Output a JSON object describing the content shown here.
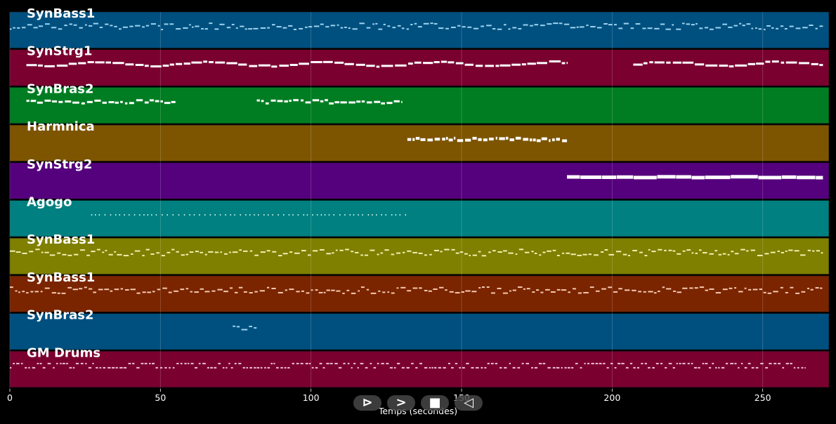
{
  "chart_data": {
    "type": "piano-roll",
    "xlabel": "Temps (secondes)",
    "x_ticks": [
      0,
      50,
      100,
      150,
      200,
      250
    ],
    "xlim": [
      0,
      272
    ],
    "grid": true,
    "tracks": [
      {
        "name": "SynBass1",
        "color": "#00507f",
        "note_color": "#9ed3f0",
        "start": 0,
        "end": 270,
        "style": "bass",
        "weight": 2
      },
      {
        "name": "SynStrg1",
        "color": "#7a0030",
        "note_color": "#ffffff",
        "start": 5.5,
        "end": 185,
        "start2": 207,
        "end2": 270,
        "style": "melody",
        "weight": 3
      },
      {
        "name": "SynBras2",
        "color": "#007d22",
        "note_color": "#ffffff",
        "start": 5.5,
        "end": 55,
        "start2": 82,
        "end2": 130,
        "style": "phrase",
        "weight": 3
      },
      {
        "name": "Harmnica",
        "color": "#7d5500",
        "note_color": "#ffffff",
        "start": 132,
        "end": 185,
        "style": "dense",
        "weight": 4
      },
      {
        "name": "SynStrg2",
        "color": "#55007d",
        "note_color": "#ffffff",
        "start": 185,
        "end": 270,
        "style": "sustain",
        "weight": 5
      },
      {
        "name": "Agogo",
        "color": "#008080",
        "note_color": "#c8f0f0",
        "start": 27,
        "end": 132,
        "style": "perc",
        "weight": 2
      },
      {
        "name": "SynBass1",
        "color": "#7f7f00",
        "note_color": "#f0f0b0",
        "start": 0,
        "end": 270,
        "style": "bass",
        "weight": 2
      },
      {
        "name": "SynBass1",
        "color": "#7a2500",
        "note_color": "#f5c9b0",
        "start": 0,
        "end": 270,
        "style": "bass",
        "weight": 2
      },
      {
        "name": "SynBras2",
        "color": "#00507f",
        "note_color": "#9ed3f0",
        "start": 74,
        "end": 82,
        "style": "phrase",
        "weight": 2
      },
      {
        "name": "GM Drums",
        "color": "#7a0030",
        "note_color": "#f0c0d5",
        "start": 0,
        "end": 264,
        "style": "drums",
        "weight": 2
      }
    ]
  },
  "controls": {
    "play_back_label": "⊳",
    "next_label": ">",
    "stop_label": "■",
    "prev_label": "◁"
  }
}
